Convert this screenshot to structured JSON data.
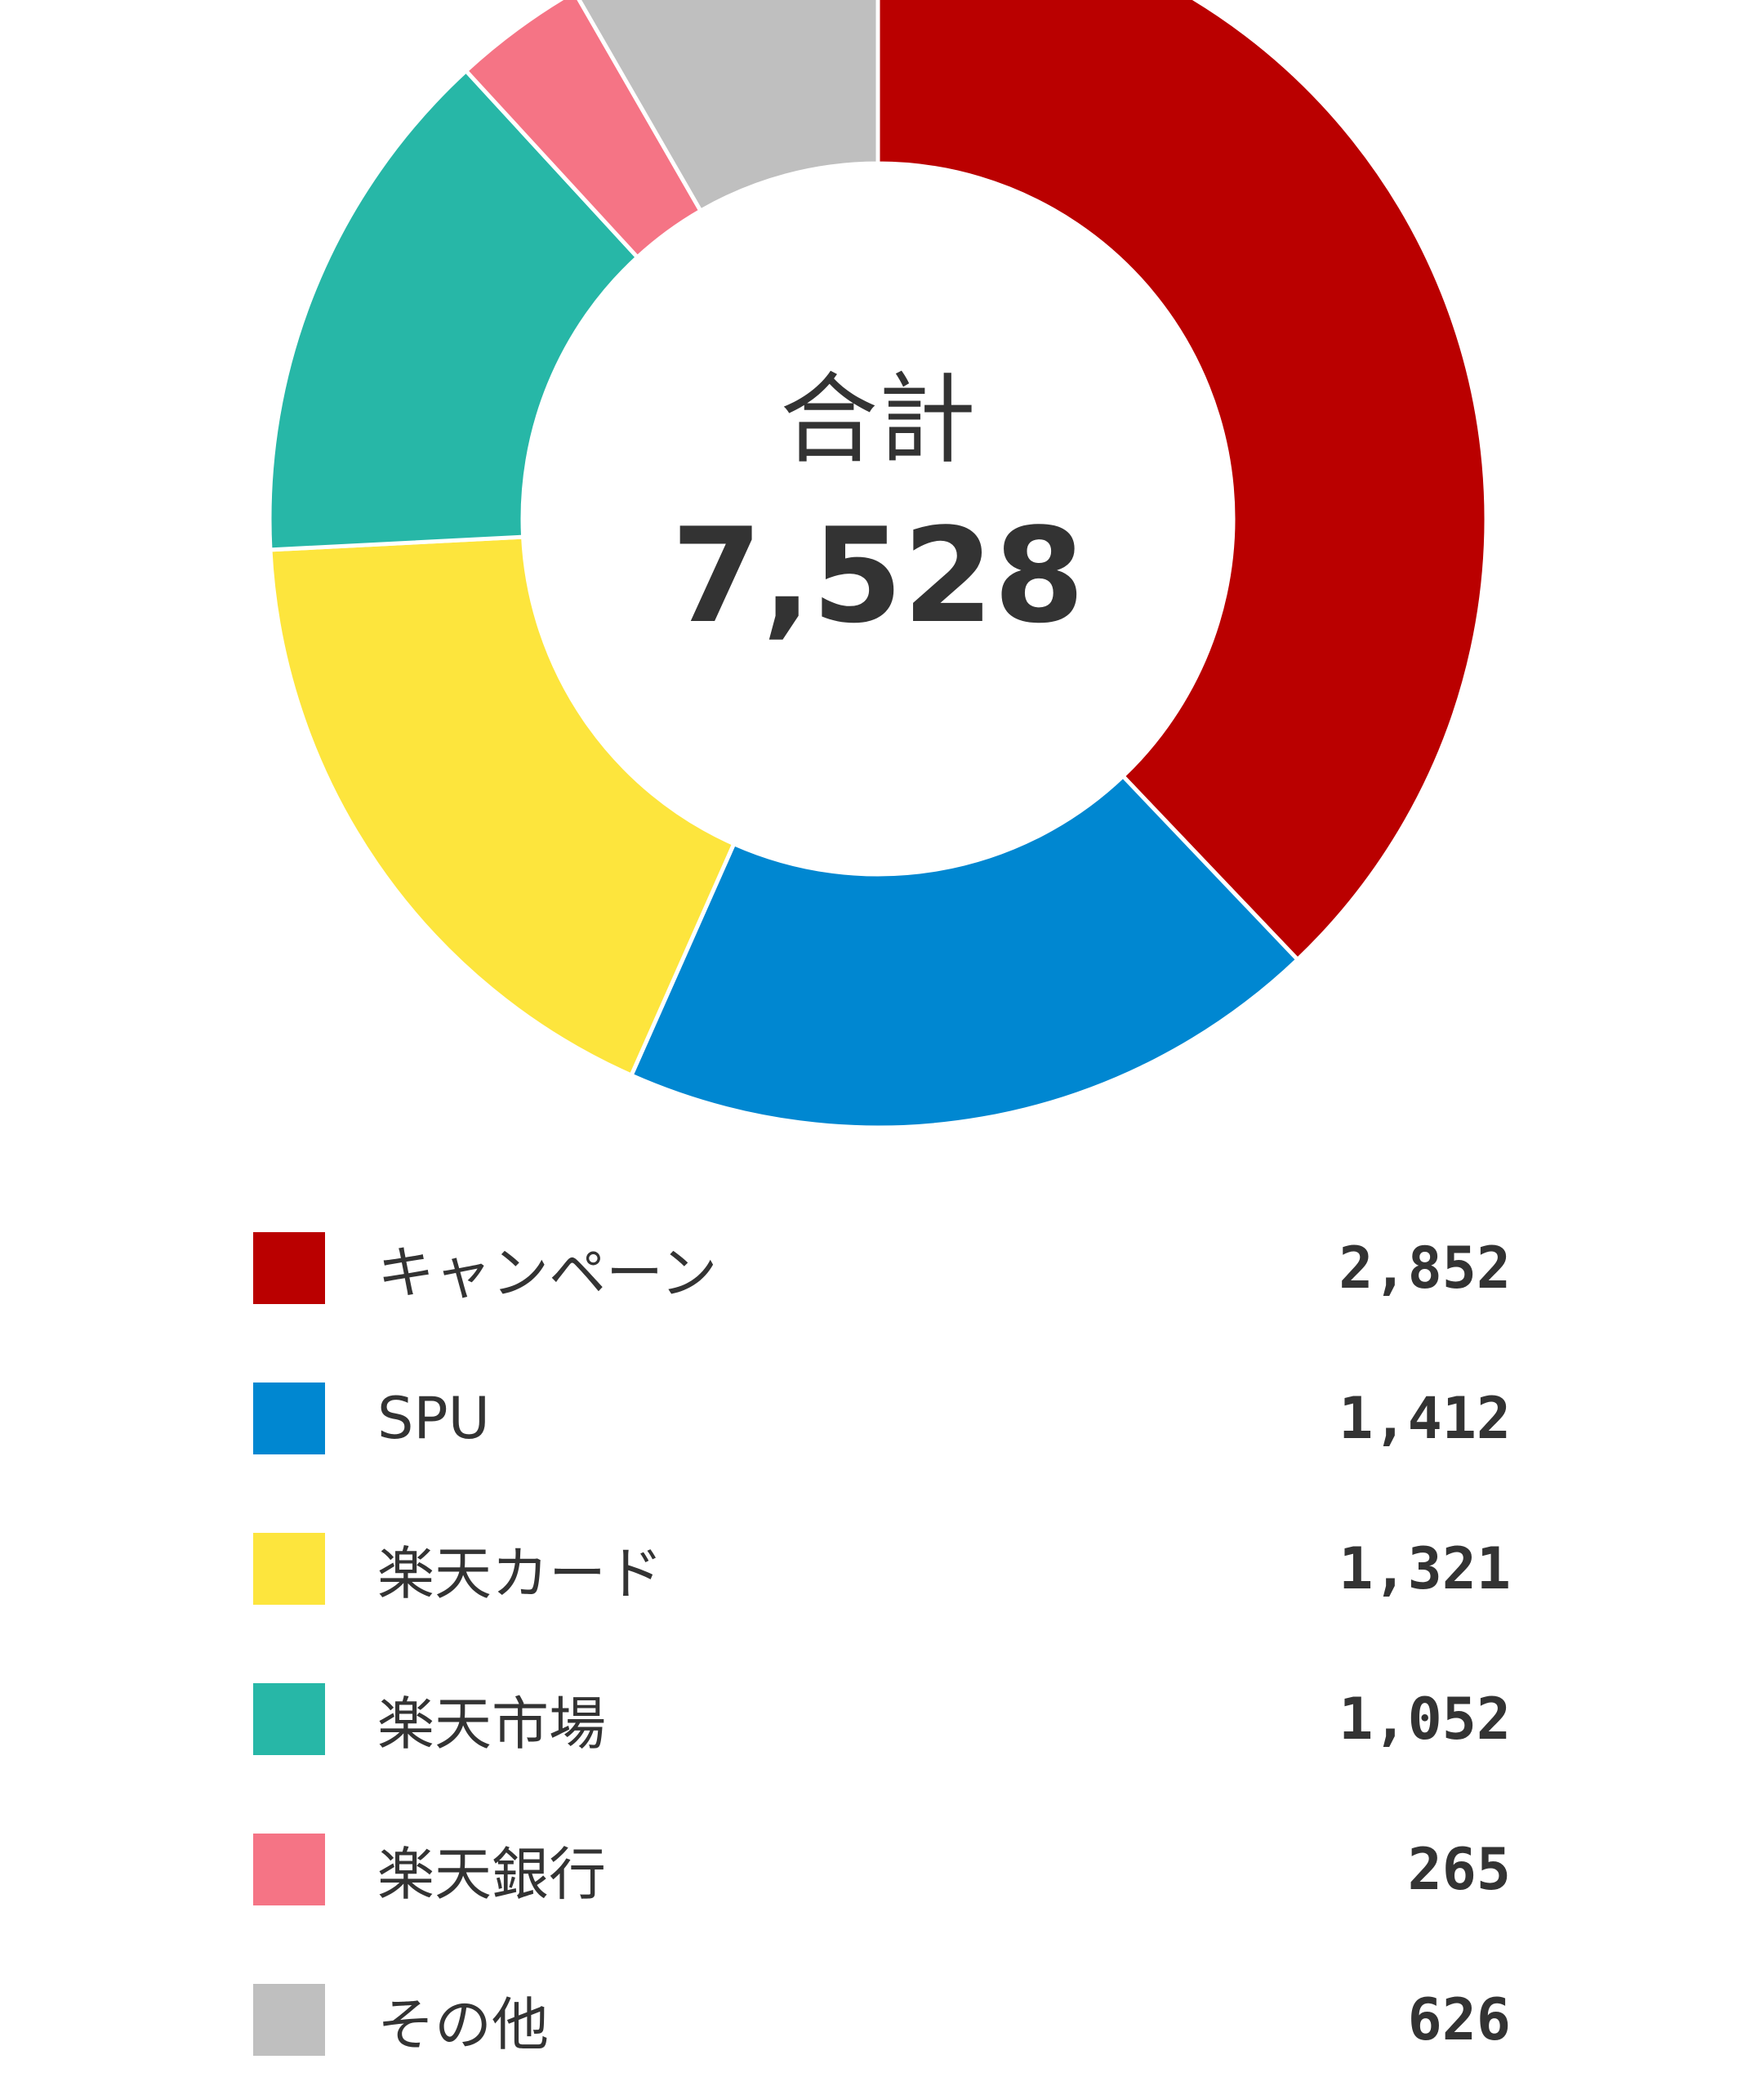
{
  "chart_data": {
    "type": "pie",
    "center_label": "合計",
    "total": "7,528",
    "slices": [
      {
        "label": "キャンペーン",
        "value": 2852,
        "display": "2,852",
        "color": "#BA0000"
      },
      {
        "label": "SPU",
        "value": 1412,
        "display": "1,412",
        "color": "#0087D1"
      },
      {
        "label": "楽天カード",
        "value": 1321,
        "display": "1,321",
        "color": "#FDE53D"
      },
      {
        "label": "楽天市場",
        "value": 1052,
        "display": "1,052",
        "color": "#27B7A7"
      },
      {
        "label": "楽天銀行",
        "value": 265,
        "display": "265",
        "color": "#F57485"
      },
      {
        "label": "その他",
        "value": 626,
        "display": "626",
        "color": "#BFBFBF"
      }
    ],
    "legend_placement": "bottom"
  }
}
